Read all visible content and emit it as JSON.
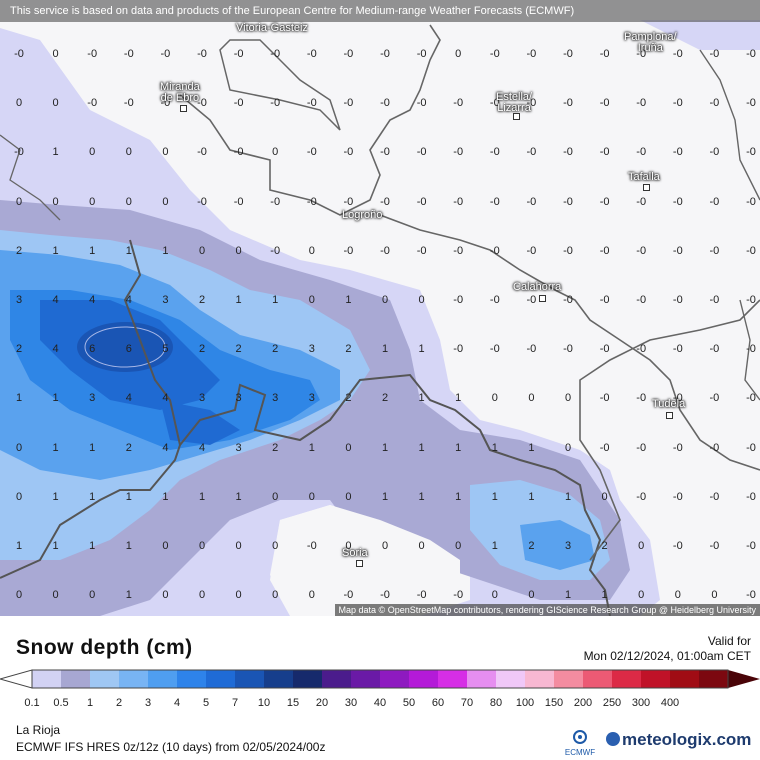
{
  "header": {
    "banner": "This service is based on data and products of the European Centre for Medium-range Weather Forecasts (ECMWF)"
  },
  "map": {
    "attribution": "Map data © OpenStreetMap contributors, rendering GIScience Research Group @ Heidelberg University",
    "cities": [
      {
        "name": "Vitoria-Gasteiz",
        "has_dot": false
      },
      {
        "name": "Pamplona/\nIruña",
        "has_dot": false
      },
      {
        "name": "Miranda\nde Ebro",
        "has_dot": true
      },
      {
        "name": "Estella/\nLizarra",
        "has_dot": true
      },
      {
        "name": "Tafalla",
        "has_dot": true
      },
      {
        "name": "Logroño",
        "has_dot": false
      },
      {
        "name": "Calahorra",
        "has_dot": true
      },
      {
        "name": "Tudela",
        "has_dot": true
      },
      {
        "name": "Soria",
        "has_dot": true
      }
    ],
    "grid_values": [
      [
        "-0",
        "0",
        "-0",
        "-0",
        "-0",
        "-0",
        "-0",
        "-0",
        "-0",
        "-0",
        "-0",
        "-0",
        "0",
        "-0",
        "-0",
        "-0",
        "-0",
        "-0",
        "-0",
        "-0",
        "-0"
      ],
      [
        "0",
        "0",
        "-0",
        "-0",
        "-0",
        "-0",
        "-0",
        "-0",
        "-0",
        "-0",
        "-0",
        "-0",
        "-0",
        "-0",
        "-0",
        "-0",
        "-0",
        "-0",
        "-0",
        "-0",
        "-0"
      ],
      [
        "-0",
        "1",
        "0",
        "0",
        "0",
        "-0",
        "-0",
        "0",
        "-0",
        "-0",
        "-0",
        "-0",
        "-0",
        "-0",
        "-0",
        "-0",
        "-0",
        "-0",
        "-0",
        "-0",
        "-0"
      ],
      [
        "0",
        "0",
        "0",
        "0",
        "0",
        "-0",
        "-0",
        "-0",
        "-0",
        "-0",
        "-0",
        "-0",
        "-0",
        "-0",
        "-0",
        "-0",
        "-0",
        "-0",
        "-0",
        "-0",
        "-0"
      ],
      [
        "2",
        "1",
        "1",
        "1",
        "1",
        "0",
        "0",
        "-0",
        "0",
        "-0",
        "-0",
        "-0",
        "-0",
        "-0",
        "-0",
        "-0",
        "-0",
        "-0",
        "-0",
        "-0",
        "-0"
      ],
      [
        "3",
        "4",
        "4",
        "4",
        "3",
        "2",
        "1",
        "1",
        "0",
        "1",
        "0",
        "0",
        "-0",
        "-0",
        "-0",
        "-0",
        "-0",
        "-0",
        "-0",
        "-0",
        "-0"
      ],
      [
        "2",
        "4",
        "6",
        "6",
        "5",
        "2",
        "2",
        "2",
        "3",
        "2",
        "1",
        "1",
        "-0",
        "-0",
        "-0",
        "-0",
        "-0",
        "-0",
        "-0",
        "-0",
        "-0"
      ],
      [
        "1",
        "1",
        "3",
        "4",
        "4",
        "3",
        "3",
        "3",
        "3",
        "2",
        "2",
        "1",
        "1",
        "0",
        "0",
        "0",
        "-0",
        "-0",
        "-0",
        "-0",
        "-0"
      ],
      [
        "0",
        "1",
        "1",
        "2",
        "4",
        "4",
        "3",
        "2",
        "1",
        "0",
        "1",
        "1",
        "1",
        "1",
        "1",
        "0",
        "-0",
        "-0",
        "-0",
        "-0",
        "-0"
      ],
      [
        "0",
        "1",
        "1",
        "1",
        "1",
        "1",
        "1",
        "0",
        "0",
        "0",
        "1",
        "1",
        "1",
        "1",
        "1",
        "1",
        "0",
        "-0",
        "-0",
        "-0",
        "-0"
      ],
      [
        "1",
        "1",
        "1",
        "1",
        "0",
        "0",
        "0",
        "0",
        "-0",
        "0",
        "0",
        "0",
        "0",
        "1",
        "2",
        "3",
        "2",
        "0",
        "-0",
        "-0",
        "-0"
      ],
      [
        "0",
        "0",
        "0",
        "1",
        "0",
        "0",
        "0",
        "0",
        "0",
        "-0",
        "-0",
        "-0",
        "-0",
        "0",
        "0",
        "1",
        "1",
        "0",
        "0",
        "0",
        "-0"
      ]
    ]
  },
  "legend": {
    "title": "Snow depth (cm)",
    "valid_label": "Valid for",
    "valid_time": "Mon 02/12/2024, 01:00am CET",
    "ticks": [
      "0.1",
      "0.5",
      "1",
      "2",
      "3",
      "4",
      "5",
      "7",
      "10",
      "15",
      "20",
      "30",
      "40",
      "50",
      "60",
      "70",
      "80",
      "100",
      "150",
      "200",
      "250",
      "300",
      "400"
    ],
    "colors": [
      "#d2d2f4",
      "#a7a7d2",
      "#9fc7f4",
      "#78b4f4",
      "#4f9ef0",
      "#2e83ea",
      "#1f6bd6",
      "#1a55b4",
      "#163e8c",
      "#162a6c",
      "#4b1c8c",
      "#6a1aa6",
      "#8e1ac0",
      "#b41ad8",
      "#d62ee6",
      "#e68ef0",
      "#f0c8f8",
      "#f8b8d2",
      "#f48ca0",
      "#ec5a74",
      "#dc2a46",
      "#c01228",
      "#a00c14",
      "#7c0810",
      "#4a0408"
    ]
  },
  "footer": {
    "region": "La Rioja",
    "model": "ECMWF IFS HRES 0z/12z (10 days) from  02/05/2024/00z",
    "ecmwf_logo": "ECMWF",
    "brand": "meteologix.com"
  }
}
